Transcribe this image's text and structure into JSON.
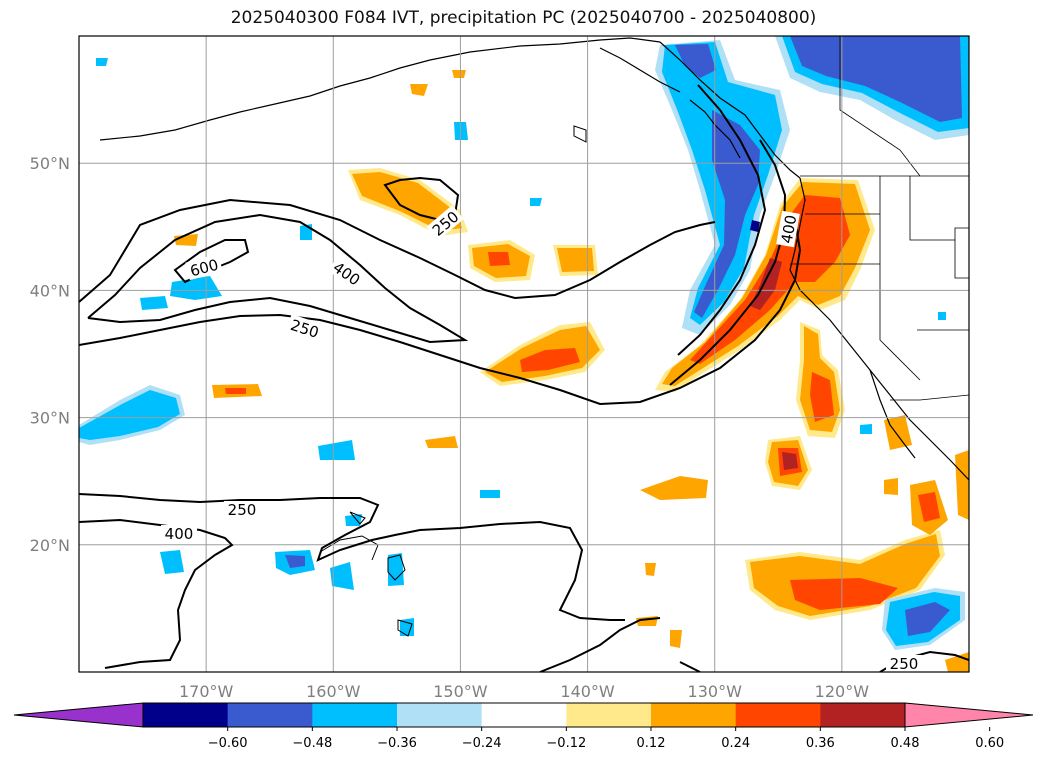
{
  "title": "2025040300 F084 IVT, precipitation PC (2025040700 - 2025040800)",
  "map": {
    "lon_range": [
      -180,
      -110
    ],
    "lat_range": [
      10,
      60
    ],
    "lon_ticks": [
      {
        "value": -170,
        "label": "170°W"
      },
      {
        "value": -160,
        "label": "160°W"
      },
      {
        "value": -150,
        "label": "150°W"
      },
      {
        "value": -140,
        "label": "140°W"
      },
      {
        "value": -130,
        "label": "130°W"
      },
      {
        "value": -120,
        "label": "120°W"
      }
    ],
    "lat_ticks": [
      {
        "value": 50,
        "label": "50°N"
      },
      {
        "value": 40,
        "label": "40°N"
      },
      {
        "value": 30,
        "label": "30°N"
      },
      {
        "value": 20,
        "label": "20°N"
      }
    ],
    "grid": true,
    "contour_labels": [
      "250",
      "400",
      "600",
      "250",
      "400",
      "250",
      "400",
      "250"
    ]
  },
  "colorbar": {
    "colors": [
      "#9932cc",
      "#00008b",
      "#3a5bd0",
      "#00bfff",
      "#b0e0f6",
      "#ffffff",
      "#ffe98a",
      "#ffa500",
      "#ff4500",
      "#b22222",
      "#ff85ab"
    ],
    "ticks": [
      "−0.60",
      "−0.48",
      "−0.36",
      "−0.24",
      "−0.12",
      "0.12",
      "0.24",
      "0.36",
      "0.48",
      "0.60"
    ],
    "extend": "both"
  },
  "legend_colors": {
    "orange": "#ffa500",
    "red_orange": "#ff4500",
    "dark_red": "#b22222",
    "yellow": "#ffe98a",
    "light_blue": "#b0e0f6",
    "sky_blue": "#00bfff",
    "royal_blue": "#3a5bd0",
    "navy": "#00008b"
  }
}
